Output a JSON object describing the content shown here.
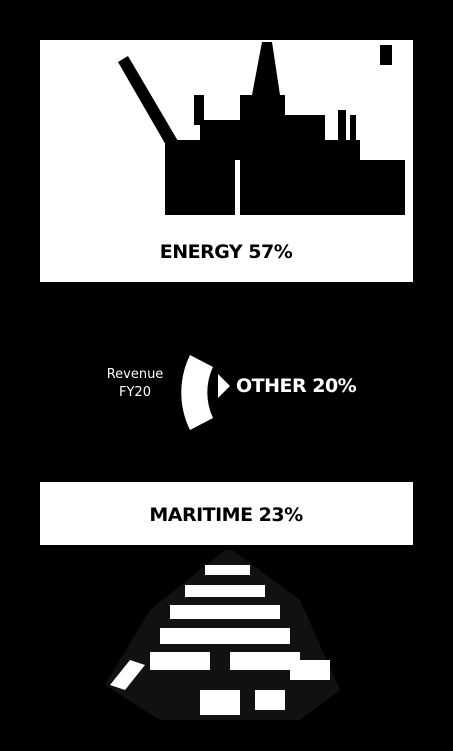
{
  "energy": {
    "label": "ENERGY 57%"
  },
  "center": {
    "line1": "Revenue",
    "line2": "FY20"
  },
  "other": {
    "label": "OTHER 20%"
  },
  "maritime": {
    "label": "MARITIME 23%"
  }
}
